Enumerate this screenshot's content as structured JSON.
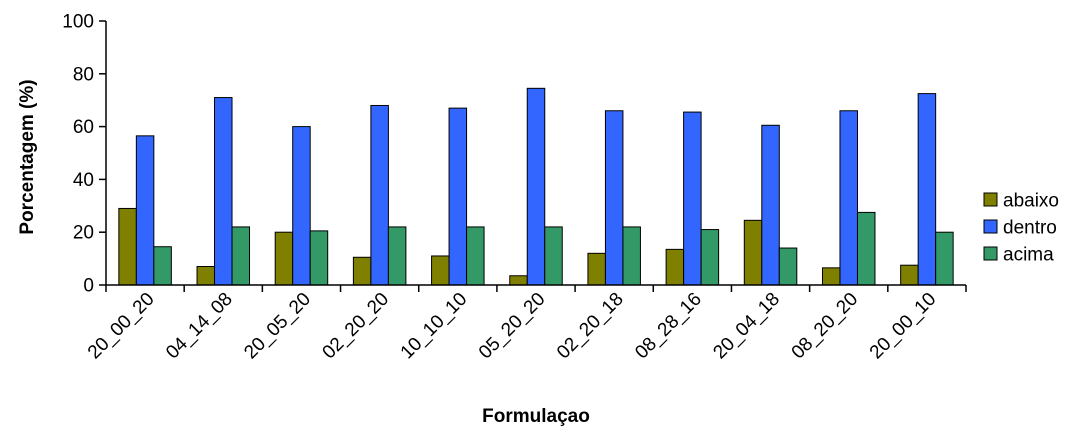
{
  "chart_data": {
    "type": "bar",
    "title": "",
    "xlabel": "Formulaçao",
    "ylabel": "Porcentagem (%)",
    "ylim": [
      0,
      100
    ],
    "yticks": [
      "0",
      "20",
      "40",
      "60",
      "80",
      "100"
    ],
    "grid": false,
    "legend_position": "right",
    "categories": [
      "20_00_20",
      "04_14_08",
      "20_05_20",
      "02_20_20",
      "10_10_10",
      "05_20_20",
      "02_20_18",
      "08_28_16",
      "20_04_18",
      "08_20_20",
      "20_00_10"
    ],
    "series": [
      {
        "name": "abaixo",
        "color": "#808000",
        "values": [
          29,
          7,
          20,
          10.5,
          11,
          3.5,
          12,
          13.5,
          24.5,
          6.5,
          7.5
        ]
      },
      {
        "name": "dentro",
        "color": "#3366ff",
        "values": [
          56.5,
          71,
          60,
          68,
          67,
          74.5,
          66,
          65.5,
          60.5,
          66,
          72.5
        ]
      },
      {
        "name": "acima",
        "color": "#339966",
        "values": [
          14.5,
          22,
          20.5,
          22,
          22,
          22,
          22,
          21,
          14,
          27.5,
          20
        ]
      }
    ]
  }
}
